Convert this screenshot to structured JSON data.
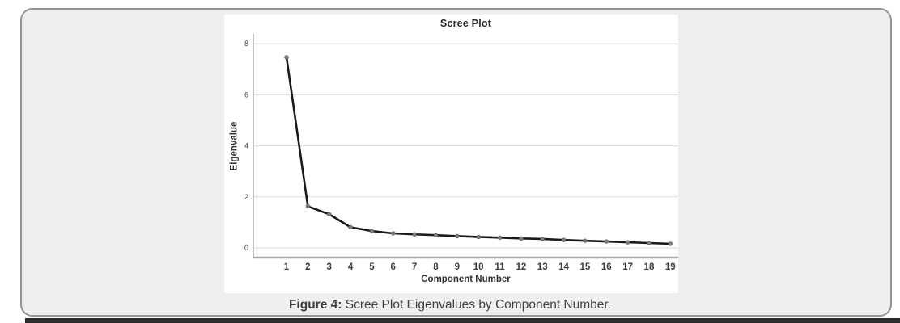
{
  "figure": {
    "caption_label": "Figure 4:",
    "caption_text": "Scree Plot Eigenvalues by Component Number."
  },
  "chart_data": {
    "type": "line",
    "title": "Scree Plot",
    "xlabel": "Component Number",
    "ylabel": "Eigenvalue",
    "x": [
      1,
      2,
      3,
      4,
      5,
      6,
      7,
      8,
      9,
      10,
      11,
      12,
      13,
      14,
      15,
      16,
      17,
      18,
      19
    ],
    "values": [
      7.47,
      1.63,
      1.32,
      0.81,
      0.66,
      0.57,
      0.53,
      0.5,
      0.46,
      0.43,
      0.4,
      0.37,
      0.35,
      0.31,
      0.28,
      0.25,
      0.22,
      0.19,
      0.16
    ],
    "yticks": [
      0,
      2,
      4,
      6,
      8
    ],
    "ylim": [
      -0.4,
      8.45
    ],
    "xlim": [
      -0.6,
      19.4
    ],
    "grid": true,
    "legend": false,
    "marker": "circle",
    "colors": {
      "line": "#1a1a1a",
      "marker": "#7d7d7d",
      "marker_edge": "#5c5c5c",
      "grid": "#dadada",
      "axis": "#a9a9a9",
      "tick_text": "#3d3d3d",
      "panel_bg": "#ffffff",
      "card_bg": "#f0efee",
      "card_border": "#949494",
      "bottom_bar": "#2c2c2c"
    }
  }
}
